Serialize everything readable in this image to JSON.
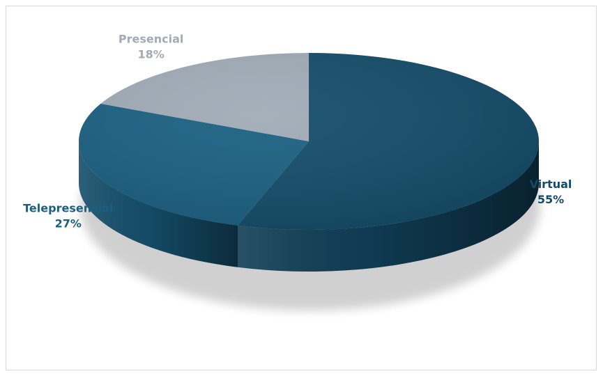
{
  "chart_data": {
    "type": "pie",
    "title": "",
    "categories": [
      "Virtual",
      "Telepresencial",
      "Presencial"
    ],
    "values": [
      55,
      27,
      18
    ],
    "value_labels": [
      "55%",
      "27%",
      "18%"
    ],
    "colors": [
      "#134b68",
      "#1a5f81",
      "#a0abb7"
    ],
    "label_colors": [
      "#134b68",
      "#1a5f81",
      "#a0abb7"
    ],
    "legend": "none",
    "style": "3d"
  }
}
